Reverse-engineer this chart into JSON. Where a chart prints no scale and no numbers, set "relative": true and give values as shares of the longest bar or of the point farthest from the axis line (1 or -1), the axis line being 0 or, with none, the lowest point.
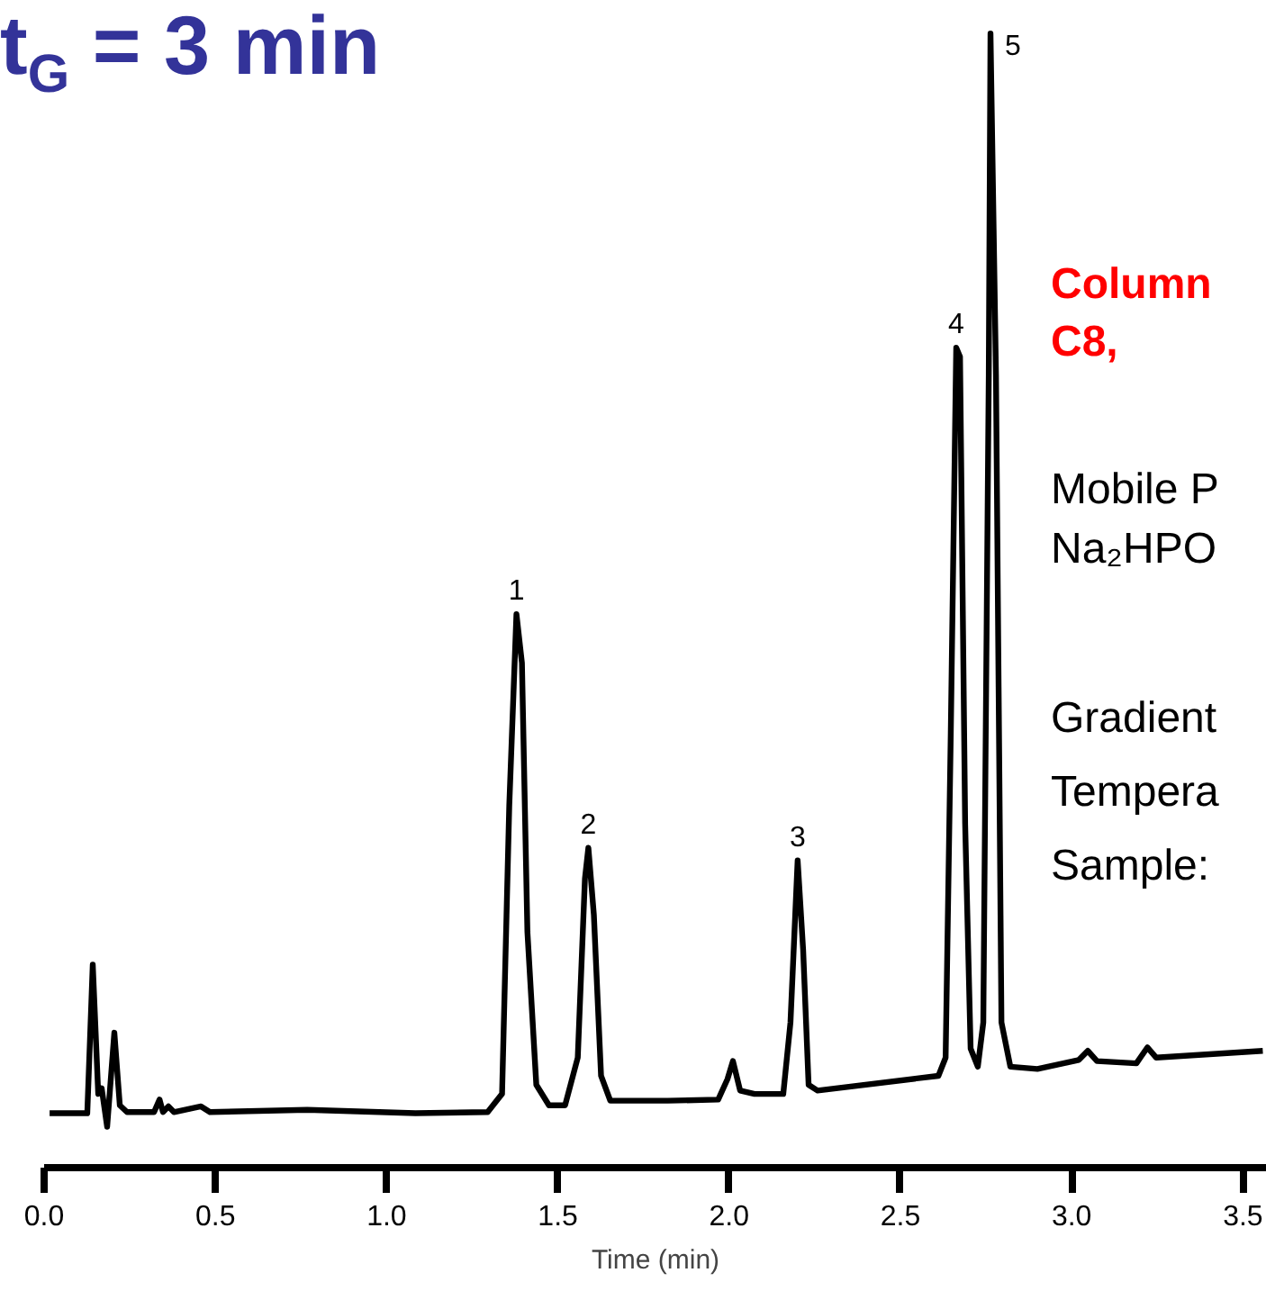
{
  "chart_data": {
    "type": "line",
    "relative": true,
    "title": "t$_{G}$ = 3 min",
    "xlabel": "Time (min)",
    "xlim": [
      0,
      3.57
    ],
    "xticks": [
      {
        "value": 0,
        "label": "0.0"
      },
      {
        "value": 0.5,
        "label": "0.5"
      },
      {
        "value": 1,
        "label": "1.0"
      },
      {
        "value": 1.5,
        "label": "1.5"
      },
      {
        "value": 2,
        "label": "2.0"
      },
      {
        "value": 2.5,
        "label": "2.5"
      },
      {
        "value": 3,
        "label": "3.0"
      },
      {
        "value": 3.5,
        "label": "3.5"
      }
    ],
    "grid": false,
    "line_style": "solid",
    "series": [
      {
        "color": "#000000",
        "x": [
          0.016,
          0.126,
          0.142,
          0.158,
          0.168,
          0.184,
          0.205,
          0.221,
          0.242,
          0.321,
          0.337,
          0.347,
          0.363,
          0.379,
          0.458,
          0.484,
          0.768,
          1.084,
          1.295,
          1.337,
          1.358,
          1.379,
          1.395,
          1.411,
          1.437,
          1.474,
          1.521,
          1.558,
          1.579,
          1.589,
          1.605,
          1.626,
          1.653,
          1.821,
          1.968,
          1.995,
          2.011,
          2.032,
          2.074,
          2.158,
          2.179,
          2.2,
          2.216,
          2.232,
          2.258,
          2.611,
          2.632,
          2.647,
          2.663,
          2.674,
          2.689,
          2.705,
          2.726,
          2.742,
          2.758,
          2.763,
          2.779,
          2.795,
          2.821,
          2.9,
          3.021,
          3.047,
          3.074,
          3.189,
          3.221,
          3.247,
          3.558
        ],
        "values": [
          0.048,
          0.048,
          0.179,
          0.065,
          0.07,
          0.036,
          0.119,
          0.055,
          0.049,
          0.049,
          0.06,
          0.049,
          0.054,
          0.049,
          0.054,
          0.049,
          0.051,
          0.048,
          0.049,
          0.065,
          0.319,
          0.488,
          0.445,
          0.208,
          0.073,
          0.055,
          0.055,
          0.097,
          0.255,
          0.282,
          0.223,
          0.081,
          0.059,
          0.059,
          0.06,
          0.078,
          0.094,
          0.068,
          0.065,
          0.065,
          0.128,
          0.271,
          0.192,
          0.073,
          0.068,
          0.081,
          0.097,
          0.382,
          0.723,
          0.715,
          0.303,
          0.105,
          0.089,
          0.128,
          0.699,
          1.0,
          0.699,
          0.128,
          0.089,
          0.087,
          0.095,
          0.103,
          0.094,
          0.092,
          0.106,
          0.097,
          0.103
        ]
      }
    ],
    "annotations": [
      {
        "text": "1",
        "x": 1.379,
        "y": 0.488
      },
      {
        "text": "2",
        "x": 1.589,
        "y": 0.282
      },
      {
        "text": "3",
        "x": 2.2,
        "y": 0.271
      },
      {
        "text": "4",
        "x": 2.663,
        "y": 0.723
      },
      {
        "text": "5",
        "x": 2.763,
        "y": 1.0
      },
      "Column",
      "C8,",
      "Mobile P",
      "Na₂HPO",
      "Gradient",
      "Tempera",
      "Sample:"
    ]
  }
}
